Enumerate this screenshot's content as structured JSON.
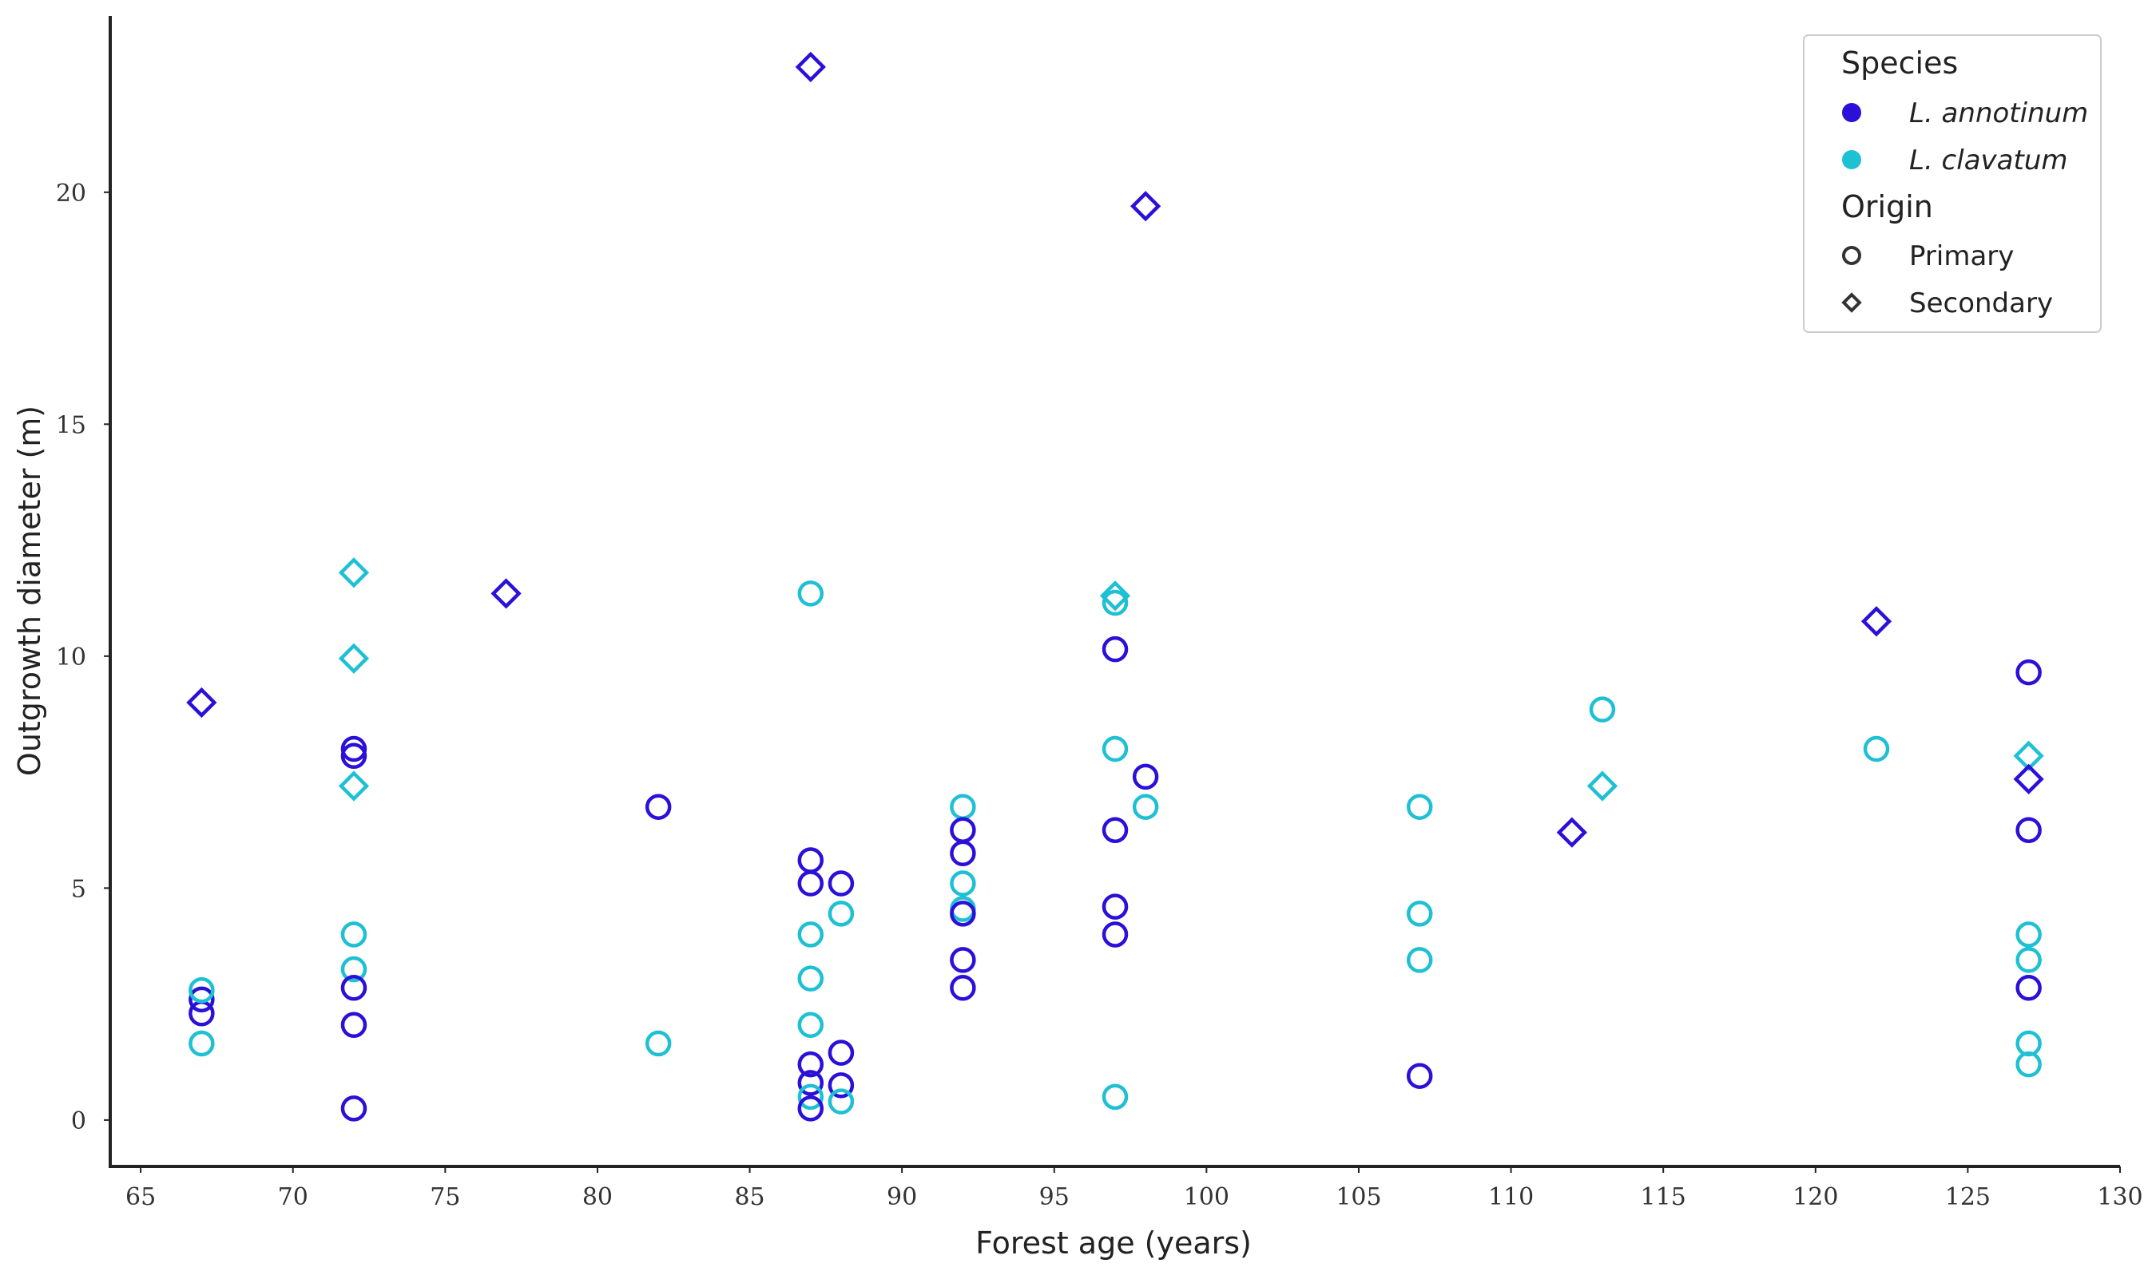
{
  "chart_data": {
    "type": "scatter",
    "xlabel": "Forest age (years)",
    "ylabel": "Outgrowth diameter (m)",
    "xlim": [
      64,
      130
    ],
    "ylim": [
      -1,
      23.8
    ],
    "xticks": [
      65,
      70,
      75,
      80,
      85,
      90,
      95,
      100,
      105,
      110,
      115,
      120,
      125,
      130
    ],
    "yticks": [
      0,
      5,
      10,
      15,
      20
    ],
    "grid": false,
    "legend_position": "top-right",
    "legend": {
      "species_title": "Species",
      "species": [
        {
          "key": "annotinum",
          "label": "L. annotinum",
          "color": "#2a10d8"
        },
        {
          "key": "clavatum",
          "label": "L. clavatum",
          "color": "#1ec0d4"
        }
      ],
      "origin_title": "Origin",
      "origins": [
        {
          "key": "primary",
          "label": "Primary",
          "marker": "circle"
        },
        {
          "key": "secondary",
          "label": "Secondary",
          "marker": "diamond"
        }
      ]
    },
    "points": [
      {
        "x": 67,
        "y": 2.3,
        "species": "annotinum",
        "origin": "primary"
      },
      {
        "x": 67,
        "y": 2.6,
        "species": "annotinum",
        "origin": "primary"
      },
      {
        "x": 67,
        "y": 2.8,
        "species": "clavatum",
        "origin": "primary"
      },
      {
        "x": 67,
        "y": 1.65,
        "species": "clavatum",
        "origin": "primary"
      },
      {
        "x": 67,
        "y": 9.0,
        "species": "annotinum",
        "origin": "secondary"
      },
      {
        "x": 72,
        "y": 11.8,
        "species": "clavatum",
        "origin": "secondary"
      },
      {
        "x": 72,
        "y": 9.95,
        "species": "clavatum",
        "origin": "secondary"
      },
      {
        "x": 72,
        "y": 8.0,
        "species": "annotinum",
        "origin": "primary"
      },
      {
        "x": 72,
        "y": 7.85,
        "species": "annotinum",
        "origin": "primary"
      },
      {
        "x": 72,
        "y": 7.2,
        "species": "clavatum",
        "origin": "secondary"
      },
      {
        "x": 72,
        "y": 4.0,
        "species": "clavatum",
        "origin": "primary"
      },
      {
        "x": 72,
        "y": 3.25,
        "species": "clavatum",
        "origin": "primary"
      },
      {
        "x": 72,
        "y": 2.85,
        "species": "annotinum",
        "origin": "primary"
      },
      {
        "x": 72,
        "y": 2.05,
        "species": "annotinum",
        "origin": "primary"
      },
      {
        "x": 72,
        "y": 0.25,
        "species": "annotinum",
        "origin": "primary"
      },
      {
        "x": 77,
        "y": 11.35,
        "species": "annotinum",
        "origin": "secondary"
      },
      {
        "x": 82,
        "y": 6.75,
        "species": "annotinum",
        "origin": "primary"
      },
      {
        "x": 82,
        "y": 1.65,
        "species": "clavatum",
        "origin": "primary"
      },
      {
        "x": 87,
        "y": 22.7,
        "species": "annotinum",
        "origin": "secondary"
      },
      {
        "x": 87,
        "y": 11.35,
        "species": "clavatum",
        "origin": "primary"
      },
      {
        "x": 87,
        "y": 5.6,
        "species": "annotinum",
        "origin": "primary"
      },
      {
        "x": 87,
        "y": 5.1,
        "species": "annotinum",
        "origin": "primary"
      },
      {
        "x": 87,
        "y": 4.0,
        "species": "clavatum",
        "origin": "primary"
      },
      {
        "x": 87,
        "y": 3.05,
        "species": "clavatum",
        "origin": "primary"
      },
      {
        "x": 87,
        "y": 2.05,
        "species": "clavatum",
        "origin": "primary"
      },
      {
        "x": 87,
        "y": 1.2,
        "species": "annotinum",
        "origin": "primary"
      },
      {
        "x": 87,
        "y": 0.8,
        "species": "annotinum",
        "origin": "primary"
      },
      {
        "x": 87,
        "y": 0.5,
        "species": "clavatum",
        "origin": "primary"
      },
      {
        "x": 87,
        "y": 0.25,
        "species": "annotinum",
        "origin": "primary"
      },
      {
        "x": 88,
        "y": 5.1,
        "species": "annotinum",
        "origin": "primary"
      },
      {
        "x": 88,
        "y": 4.45,
        "species": "clavatum",
        "origin": "primary"
      },
      {
        "x": 88,
        "y": 1.45,
        "species": "annotinum",
        "origin": "primary"
      },
      {
        "x": 88,
        "y": 0.75,
        "species": "annotinum",
        "origin": "primary"
      },
      {
        "x": 88,
        "y": 0.4,
        "species": "clavatum",
        "origin": "primary"
      },
      {
        "x": 92,
        "y": 6.75,
        "species": "clavatum",
        "origin": "primary"
      },
      {
        "x": 92,
        "y": 6.25,
        "species": "annotinum",
        "origin": "primary"
      },
      {
        "x": 92,
        "y": 5.75,
        "species": "annotinum",
        "origin": "primary"
      },
      {
        "x": 92,
        "y": 5.1,
        "species": "clavatum",
        "origin": "primary"
      },
      {
        "x": 92,
        "y": 4.55,
        "species": "clavatum",
        "origin": "primary"
      },
      {
        "x": 92,
        "y": 4.45,
        "species": "annotinum",
        "origin": "primary"
      },
      {
        "x": 92,
        "y": 3.45,
        "species": "annotinum",
        "origin": "primary"
      },
      {
        "x": 92,
        "y": 2.85,
        "species": "annotinum",
        "origin": "primary"
      },
      {
        "x": 97,
        "y": 11.3,
        "species": "clavatum",
        "origin": "secondary"
      },
      {
        "x": 97,
        "y": 11.15,
        "species": "clavatum",
        "origin": "primary"
      },
      {
        "x": 97,
        "y": 10.15,
        "species": "annotinum",
        "origin": "primary"
      },
      {
        "x": 97,
        "y": 8.0,
        "species": "clavatum",
        "origin": "primary"
      },
      {
        "x": 97,
        "y": 6.25,
        "species": "annotinum",
        "origin": "primary"
      },
      {
        "x": 97,
        "y": 4.6,
        "species": "annotinum",
        "origin": "primary"
      },
      {
        "x": 97,
        "y": 4.0,
        "species": "annotinum",
        "origin": "primary"
      },
      {
        "x": 97,
        "y": 0.5,
        "species": "clavatum",
        "origin": "primary"
      },
      {
        "x": 98,
        "y": 19.7,
        "species": "annotinum",
        "origin": "secondary"
      },
      {
        "x": 98,
        "y": 7.4,
        "species": "annotinum",
        "origin": "primary"
      },
      {
        "x": 98,
        "y": 6.75,
        "species": "clavatum",
        "origin": "primary"
      },
      {
        "x": 107,
        "y": 6.75,
        "species": "clavatum",
        "origin": "primary"
      },
      {
        "x": 107,
        "y": 4.45,
        "species": "clavatum",
        "origin": "primary"
      },
      {
        "x": 107,
        "y": 3.45,
        "species": "clavatum",
        "origin": "primary"
      },
      {
        "x": 107,
        "y": 0.95,
        "species": "annotinum",
        "origin": "primary"
      },
      {
        "x": 112,
        "y": 6.2,
        "species": "annotinum",
        "origin": "secondary"
      },
      {
        "x": 113,
        "y": 8.85,
        "species": "clavatum",
        "origin": "primary"
      },
      {
        "x": 113,
        "y": 7.2,
        "species": "clavatum",
        "origin": "secondary"
      },
      {
        "x": 122,
        "y": 10.75,
        "species": "annotinum",
        "origin": "secondary"
      },
      {
        "x": 122,
        "y": 8.0,
        "species": "clavatum",
        "origin": "primary"
      },
      {
        "x": 127,
        "y": 9.65,
        "species": "annotinum",
        "origin": "primary"
      },
      {
        "x": 127,
        "y": 7.85,
        "species": "clavatum",
        "origin": "secondary"
      },
      {
        "x": 127,
        "y": 7.35,
        "species": "annotinum",
        "origin": "secondary"
      },
      {
        "x": 127,
        "y": 6.25,
        "species": "annotinum",
        "origin": "primary"
      },
      {
        "x": 127,
        "y": 4.0,
        "species": "clavatum",
        "origin": "primary"
      },
      {
        "x": 127,
        "y": 3.45,
        "species": "clavatum",
        "origin": "primary"
      },
      {
        "x": 127,
        "y": 2.85,
        "species": "annotinum",
        "origin": "primary"
      },
      {
        "x": 127,
        "y": 1.65,
        "species": "clavatum",
        "origin": "primary"
      },
      {
        "x": 127,
        "y": 1.2,
        "species": "clavatum",
        "origin": "primary"
      }
    ]
  }
}
